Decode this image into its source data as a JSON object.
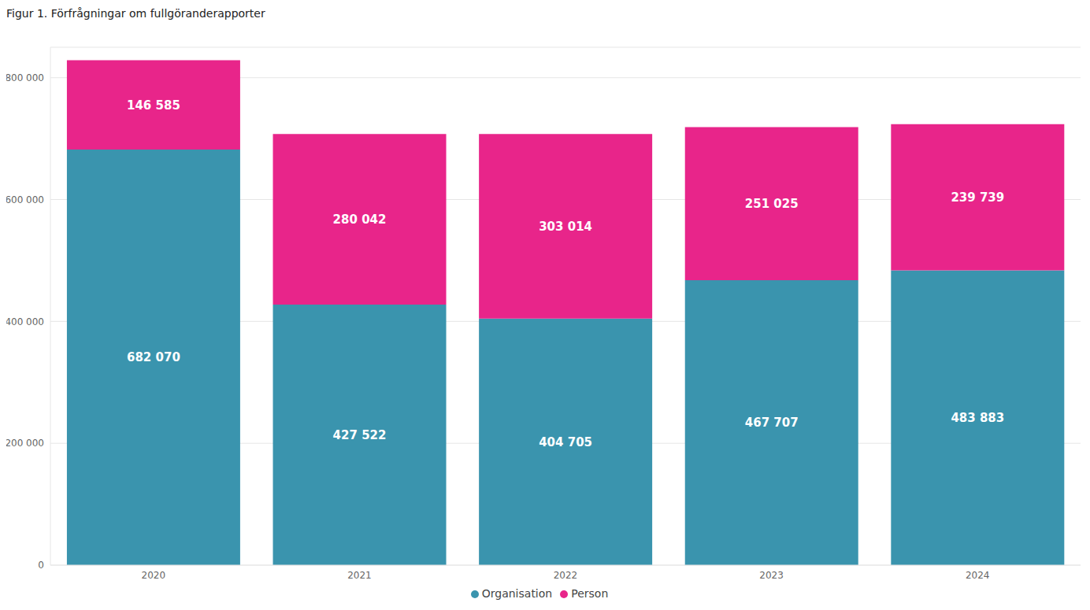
{
  "chart_data": {
    "type": "bar",
    "title": "Figur 1. Förfrågningar om fullgöranderapporter",
    "categories": [
      "2020",
      "2021",
      "2022",
      "2023",
      "2024"
    ],
    "series": [
      {
        "name": "Organisation",
        "color": "#3A94AE",
        "values": [
          682070,
          427522,
          404705,
          467707,
          483883
        ],
        "value_labels": [
          "682 070",
          "427 522",
          "404 705",
          "467 707",
          "483 883"
        ]
      },
      {
        "name": "Person",
        "color": "#E8258A",
        "values": [
          146585,
          280042,
          303014,
          251025,
          239739
        ],
        "value_labels": [
          "146 585",
          "280 042",
          "303 014",
          "251 025",
          "239 739"
        ]
      }
    ],
    "ylim": [
      0,
      850000
    ],
    "yticks": [
      0,
      {
        "value": 200000,
        "label": "200 000"
      },
      {
        "value": 400000,
        "label": "400 000"
      },
      {
        "value": 600000,
        "label": "600 000"
      },
      {
        "value": 800000,
        "label": "800 000"
      }
    ],
    "grid": true,
    "stacked": true,
    "data_labels": true,
    "legend": "bottom"
  }
}
